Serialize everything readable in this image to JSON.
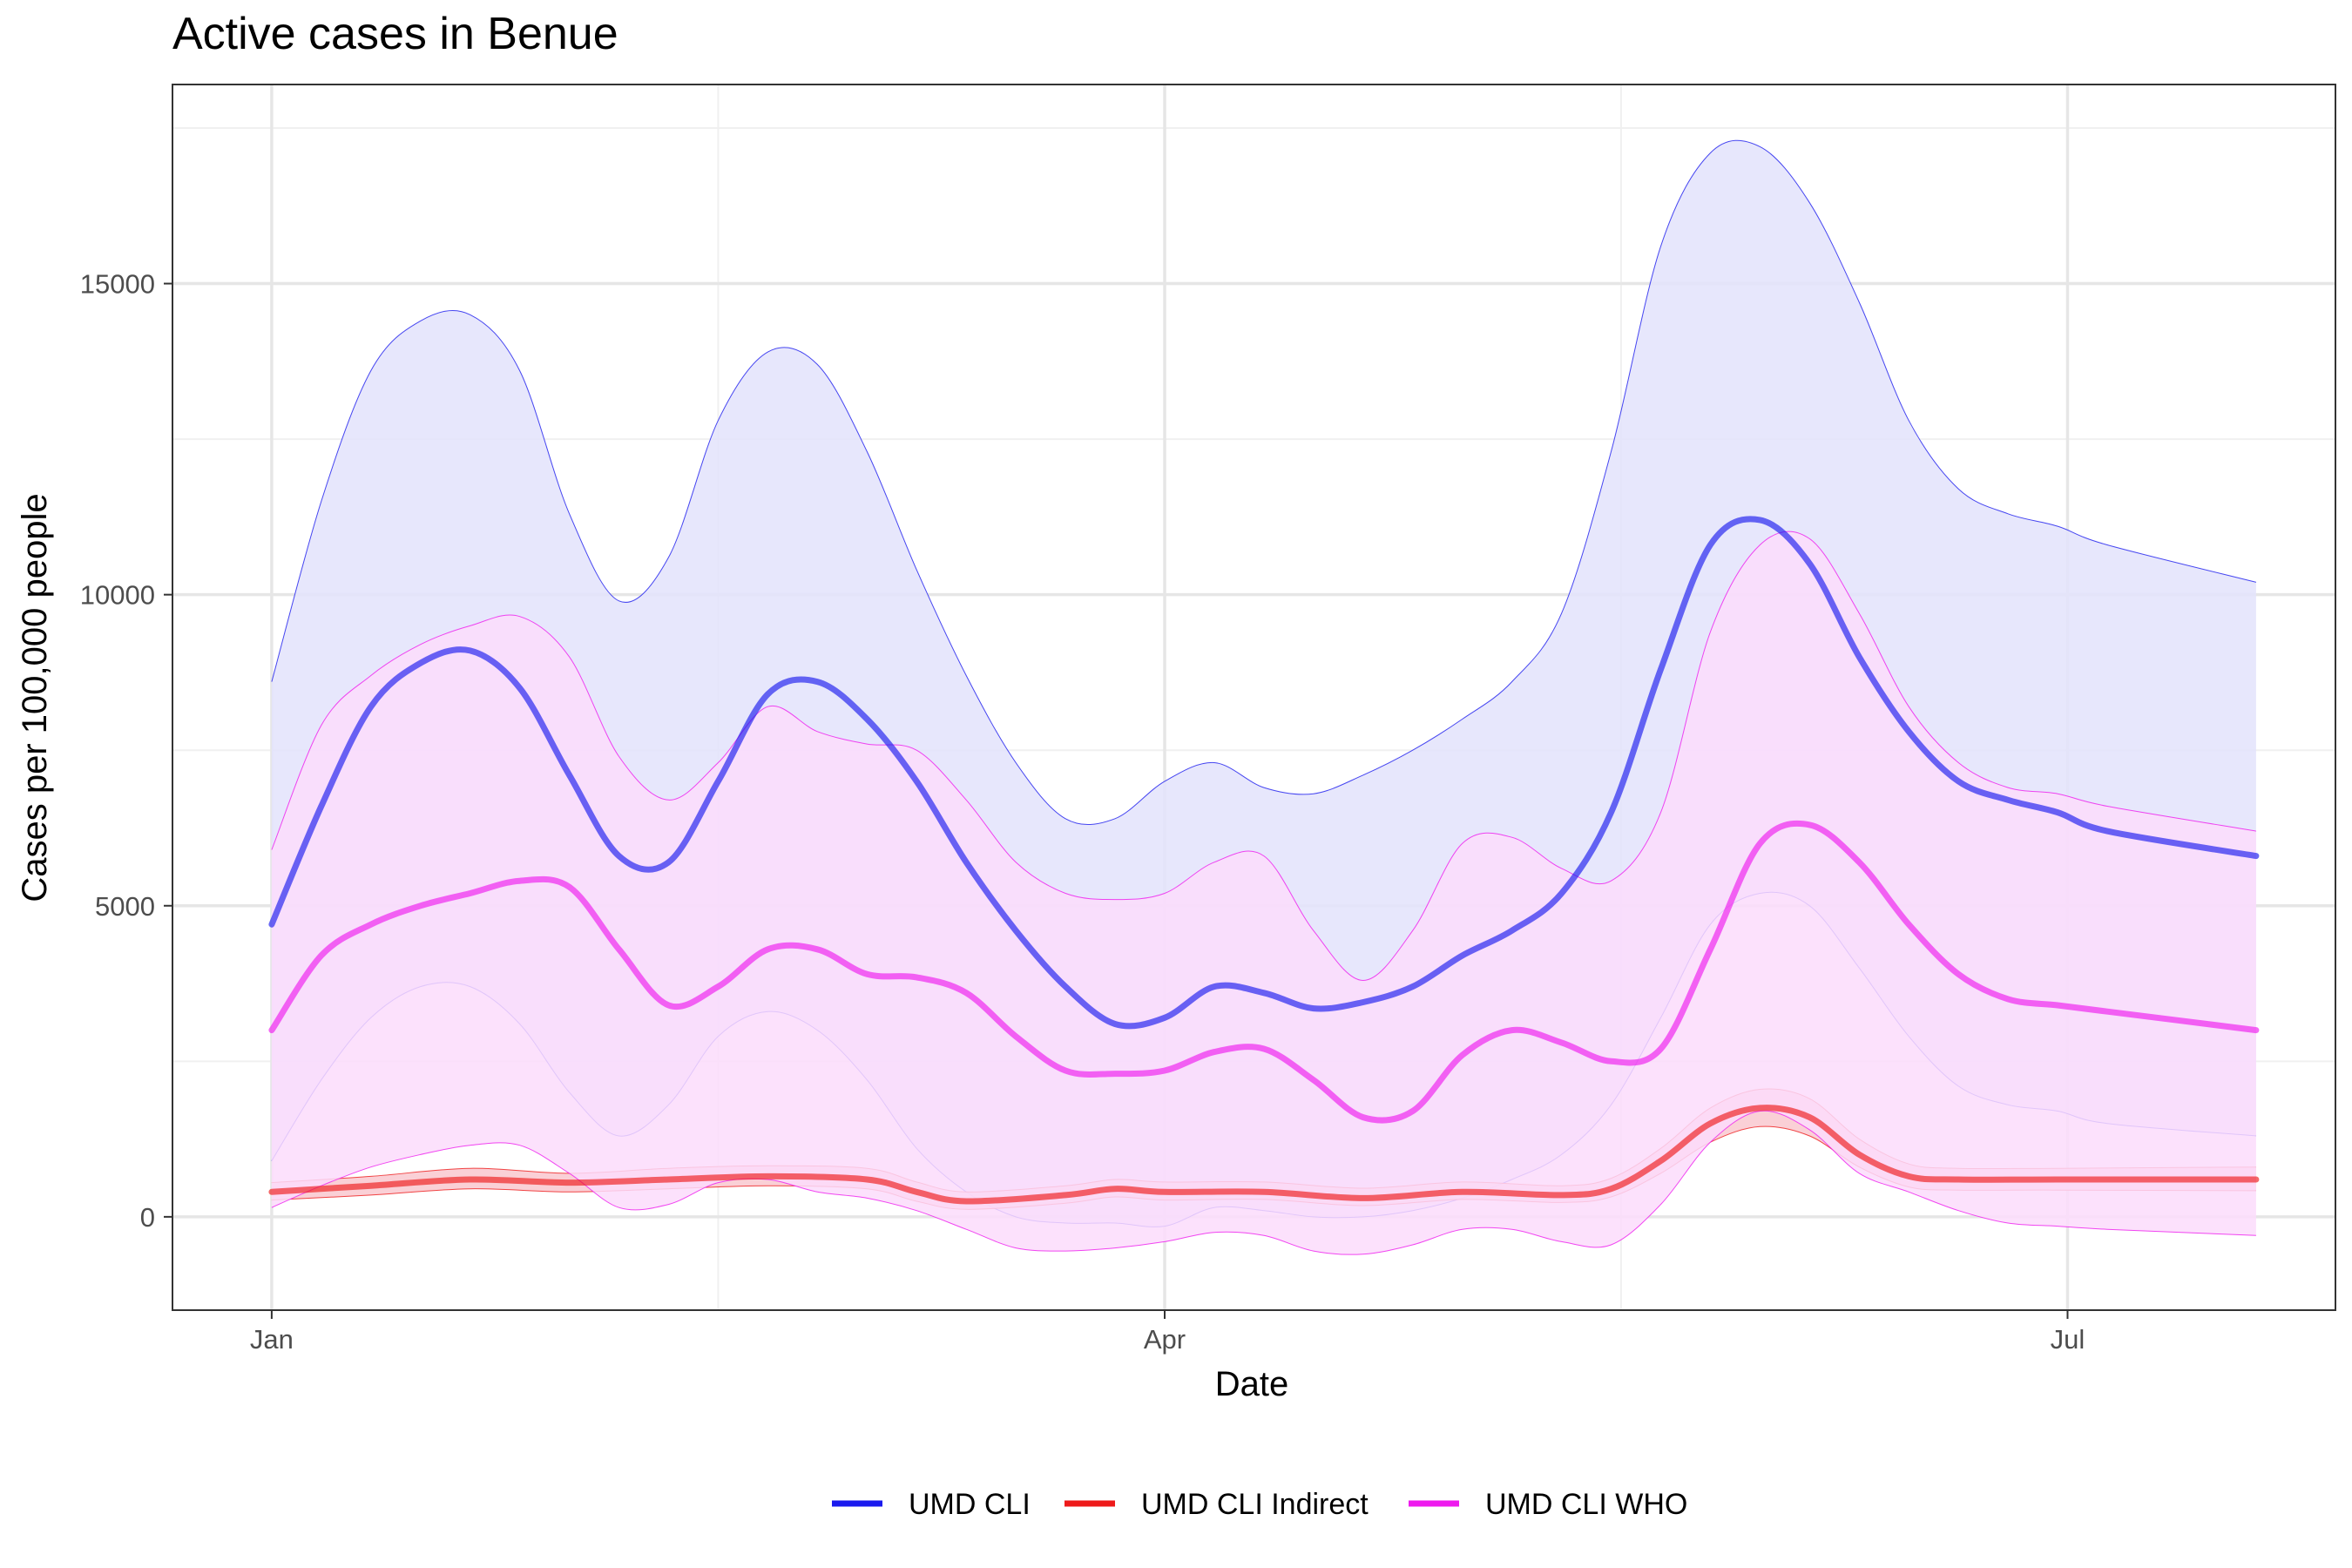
{
  "chart_data": {
    "type": "line",
    "title": "Active cases in Benue",
    "xlabel": "Date",
    "ylabel": "Cases per 100,000 people",
    "x_ticks": [
      {
        "label": "Jan",
        "day": 0
      },
      {
        "label": "Apr",
        "day": 90
      },
      {
        "label": "Jul",
        "day": 181
      }
    ],
    "x_minor_days": [
      45,
      136
    ],
    "xlim": [
      -10,
      208
    ],
    "y_ticks": [
      0,
      5000,
      10000,
      15000
    ],
    "y_minor": [
      2500,
      7500,
      12500,
      17500
    ],
    "ylim": [
      -1500,
      18200
    ],
    "grid": true,
    "legend_position": "bottom",
    "series": [
      {
        "name": "UMD CLI",
        "color": "#1a1aee",
        "band_fill": "#e3e3fc",
        "mean": [
          [
            0,
            4700
          ],
          [
            5,
            6600
          ],
          [
            10,
            8200
          ],
          [
            15,
            8900
          ],
          [
            20,
            9100
          ],
          [
            25,
            8500
          ],
          [
            30,
            7100
          ],
          [
            35,
            5800
          ],
          [
            40,
            5700
          ],
          [
            45,
            7000
          ],
          [
            50,
            8400
          ],
          [
            55,
            8600
          ],
          [
            60,
            8000
          ],
          [
            65,
            7000
          ],
          [
            70,
            5700
          ],
          [
            75,
            4600
          ],
          [
            80,
            3700
          ],
          [
            85,
            3100
          ],
          [
            90,
            3200
          ],
          [
            95,
            3700
          ],
          [
            100,
            3600
          ],
          [
            105,
            3350
          ],
          [
            110,
            3450
          ],
          [
            115,
            3700
          ],
          [
            120,
            4200
          ],
          [
            125,
            4600
          ],
          [
            130,
            5200
          ],
          [
            135,
            6500
          ],
          [
            140,
            8800
          ],
          [
            145,
            10800
          ],
          [
            150,
            11200
          ],
          [
            155,
            10500
          ],
          [
            160,
            9000
          ],
          [
            165,
            7800
          ],
          [
            170,
            7000
          ],
          [
            175,
            6700
          ],
          [
            180,
            6500
          ],
          [
            185,
            6200
          ],
          [
            200,
            5800
          ]
        ],
        "lower": [
          [
            0,
            900
          ],
          [
            5,
            2200
          ],
          [
            10,
            3200
          ],
          [
            15,
            3700
          ],
          [
            20,
            3700
          ],
          [
            25,
            3100
          ],
          [
            30,
            2000
          ],
          [
            35,
            1300
          ],
          [
            40,
            1800
          ],
          [
            45,
            2900
          ],
          [
            50,
            3300
          ],
          [
            55,
            3000
          ],
          [
            60,
            2200
          ],
          [
            65,
            1100
          ],
          [
            70,
            400
          ],
          [
            75,
            0
          ],
          [
            80,
            -100
          ],
          [
            85,
            -100
          ],
          [
            90,
            -150
          ],
          [
            95,
            150
          ],
          [
            100,
            100
          ],
          [
            105,
            0
          ],
          [
            110,
            0
          ],
          [
            115,
            100
          ],
          [
            120,
            300
          ],
          [
            125,
            600
          ],
          [
            130,
            1000
          ],
          [
            135,
            1800
          ],
          [
            140,
            3200
          ],
          [
            145,
            4700
          ],
          [
            150,
            5200
          ],
          [
            155,
            5000
          ],
          [
            160,
            4000
          ],
          [
            165,
            2900
          ],
          [
            170,
            2100
          ],
          [
            175,
            1800
          ],
          [
            180,
            1700
          ],
          [
            185,
            1500
          ],
          [
            200,
            1300
          ]
        ],
        "upper": [
          [
            0,
            8600
          ],
          [
            5,
            11500
          ],
          [
            10,
            13600
          ],
          [
            15,
            14400
          ],
          [
            20,
            14500
          ],
          [
            25,
            13600
          ],
          [
            30,
            11300
          ],
          [
            35,
            9900
          ],
          [
            40,
            10600
          ],
          [
            45,
            12800
          ],
          [
            50,
            13900
          ],
          [
            55,
            13700
          ],
          [
            60,
            12300
          ],
          [
            65,
            10400
          ],
          [
            70,
            8700
          ],
          [
            75,
            7300
          ],
          [
            80,
            6400
          ],
          [
            85,
            6400
          ],
          [
            90,
            7000
          ],
          [
            95,
            7300
          ],
          [
            100,
            6900
          ],
          [
            105,
            6800
          ],
          [
            110,
            7100
          ],
          [
            115,
            7500
          ],
          [
            120,
            8000
          ],
          [
            125,
            8600
          ],
          [
            130,
            9700
          ],
          [
            135,
            12300
          ],
          [
            140,
            15600
          ],
          [
            145,
            17100
          ],
          [
            150,
            17200
          ],
          [
            155,
            16300
          ],
          [
            160,
            14700
          ],
          [
            165,
            12800
          ],
          [
            170,
            11700
          ],
          [
            175,
            11300
          ],
          [
            180,
            11100
          ],
          [
            185,
            10800
          ],
          [
            200,
            10200
          ]
        ]
      },
      {
        "name": "UMD CLI Indirect",
        "color": "#ee1a1a",
        "band_fill": "#f9c8cf",
        "mean": [
          [
            0,
            400
          ],
          [
            10,
            500
          ],
          [
            20,
            600
          ],
          [
            30,
            550
          ],
          [
            40,
            600
          ],
          [
            50,
            650
          ],
          [
            60,
            600
          ],
          [
            65,
            400
          ],
          [
            70,
            250
          ],
          [
            80,
            350
          ],
          [
            85,
            450
          ],
          [
            90,
            400
          ],
          [
            100,
            400
          ],
          [
            110,
            300
          ],
          [
            120,
            400
          ],
          [
            130,
            350
          ],
          [
            135,
            450
          ],
          [
            140,
            900
          ],
          [
            145,
            1500
          ],
          [
            150,
            1750
          ],
          [
            155,
            1600
          ],
          [
            160,
            1000
          ],
          [
            165,
            650
          ],
          [
            170,
            600
          ],
          [
            180,
            600
          ],
          [
            200,
            600
          ]
        ],
        "lower": [
          [
            0,
            270
          ],
          [
            10,
            350
          ],
          [
            20,
            450
          ],
          [
            30,
            400
          ],
          [
            40,
            450
          ],
          [
            50,
            500
          ],
          [
            60,
            450
          ],
          [
            65,
            250
          ],
          [
            70,
            120
          ],
          [
            80,
            220
          ],
          [
            85,
            320
          ],
          [
            90,
            270
          ],
          [
            100,
            280
          ],
          [
            110,
            180
          ],
          [
            120,
            280
          ],
          [
            130,
            230
          ],
          [
            135,
            320
          ],
          [
            140,
            700
          ],
          [
            145,
            1200
          ],
          [
            150,
            1450
          ],
          [
            155,
            1300
          ],
          [
            160,
            800
          ],
          [
            165,
            480
          ],
          [
            170,
            430
          ],
          [
            180,
            430
          ],
          [
            200,
            420
          ]
        ],
        "upper": [
          [
            0,
            550
          ],
          [
            10,
            650
          ],
          [
            20,
            780
          ],
          [
            30,
            700
          ],
          [
            40,
            780
          ],
          [
            50,
            820
          ],
          [
            60,
            780
          ],
          [
            65,
            560
          ],
          [
            70,
            400
          ],
          [
            80,
            500
          ],
          [
            85,
            600
          ],
          [
            90,
            560
          ],
          [
            100,
            560
          ],
          [
            110,
            460
          ],
          [
            120,
            560
          ],
          [
            130,
            500
          ],
          [
            135,
            620
          ],
          [
            140,
            1100
          ],
          [
            145,
            1750
          ],
          [
            150,
            2050
          ],
          [
            155,
            1900
          ],
          [
            160,
            1250
          ],
          [
            165,
            850
          ],
          [
            170,
            780
          ],
          [
            180,
            780
          ],
          [
            200,
            800
          ]
        ]
      },
      {
        "name": "UMD CLI WHO",
        "color": "#ee1aee",
        "band_fill": "#fcdcfc",
        "mean": [
          [
            0,
            3000
          ],
          [
            5,
            4200
          ],
          [
            10,
            4700
          ],
          [
            15,
            5000
          ],
          [
            20,
            5200
          ],
          [
            25,
            5400
          ],
          [
            30,
            5300
          ],
          [
            35,
            4300
          ],
          [
            40,
            3400
          ],
          [
            45,
            3700
          ],
          [
            50,
            4300
          ],
          [
            55,
            4300
          ],
          [
            60,
            3900
          ],
          [
            65,
            3850
          ],
          [
            70,
            3600
          ],
          [
            75,
            2900
          ],
          [
            80,
            2350
          ],
          [
            85,
            2300
          ],
          [
            90,
            2350
          ],
          [
            95,
            2650
          ],
          [
            100,
            2700
          ],
          [
            105,
            2200
          ],
          [
            110,
            1600
          ],
          [
            115,
            1700
          ],
          [
            120,
            2600
          ],
          [
            125,
            3000
          ],
          [
            130,
            2800
          ],
          [
            135,
            2500
          ],
          [
            140,
            2700
          ],
          [
            145,
            4300
          ],
          [
            150,
            6000
          ],
          [
            155,
            6300
          ],
          [
            160,
            5700
          ],
          [
            165,
            4700
          ],
          [
            170,
            3900
          ],
          [
            175,
            3500
          ],
          [
            180,
            3400
          ],
          [
            185,
            3300
          ],
          [
            200,
            3000
          ]
        ],
        "lower": [
          [
            0,
            150
          ],
          [
            5,
            500
          ],
          [
            10,
            800
          ],
          [
            15,
            1000
          ],
          [
            20,
            1150
          ],
          [
            25,
            1150
          ],
          [
            30,
            700
          ],
          [
            35,
            150
          ],
          [
            40,
            200
          ],
          [
            45,
            550
          ],
          [
            50,
            600
          ],
          [
            55,
            400
          ],
          [
            60,
            300
          ],
          [
            65,
            100
          ],
          [
            70,
            -200
          ],
          [
            75,
            -500
          ],
          [
            80,
            -550
          ],
          [
            85,
            -500
          ],
          [
            90,
            -400
          ],
          [
            95,
            -250
          ],
          [
            100,
            -300
          ],
          [
            105,
            -550
          ],
          [
            110,
            -600
          ],
          [
            115,
            -450
          ],
          [
            120,
            -200
          ],
          [
            125,
            -200
          ],
          [
            130,
            -400
          ],
          [
            135,
            -450
          ],
          [
            140,
            200
          ],
          [
            145,
            1200
          ],
          [
            150,
            1700
          ],
          [
            155,
            1400
          ],
          [
            160,
            700
          ],
          [
            165,
            400
          ],
          [
            170,
            100
          ],
          [
            175,
            -100
          ],
          [
            180,
            -150
          ],
          [
            185,
            -200
          ],
          [
            200,
            -300
          ]
        ],
        "upper": [
          [
            0,
            5900
          ],
          [
            5,
            7900
          ],
          [
            10,
            8700
          ],
          [
            15,
            9200
          ],
          [
            20,
            9500
          ],
          [
            25,
            9650
          ],
          [
            30,
            9000
          ],
          [
            35,
            7400
          ],
          [
            40,
            6700
          ],
          [
            45,
            7300
          ],
          [
            50,
            8200
          ],
          [
            55,
            7800
          ],
          [
            60,
            7600
          ],
          [
            65,
            7500
          ],
          [
            70,
            6700
          ],
          [
            75,
            5700
          ],
          [
            80,
            5200
          ],
          [
            85,
            5100
          ],
          [
            90,
            5200
          ],
          [
            95,
            5700
          ],
          [
            100,
            5800
          ],
          [
            105,
            4600
          ],
          [
            110,
            3800
          ],
          [
            115,
            4600
          ],
          [
            120,
            6000
          ],
          [
            125,
            6100
          ],
          [
            130,
            5600
          ],
          [
            135,
            5400
          ],
          [
            140,
            6500
          ],
          [
            145,
            9400
          ],
          [
            150,
            10800
          ],
          [
            155,
            10900
          ],
          [
            160,
            9700
          ],
          [
            165,
            8200
          ],
          [
            170,
            7300
          ],
          [
            175,
            6900
          ],
          [
            180,
            6800
          ],
          [
            185,
            6600
          ],
          [
            200,
            6200
          ]
        ]
      }
    ]
  }
}
